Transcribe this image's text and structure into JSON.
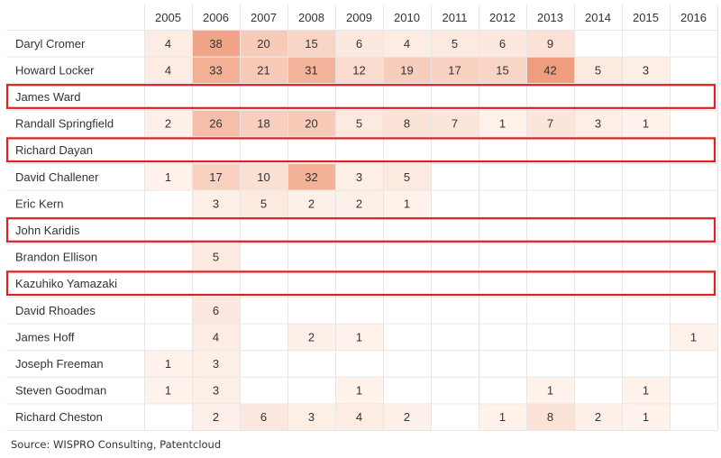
{
  "chart_data": {
    "type": "heatmap",
    "title": "",
    "years": [
      "2005",
      "2006",
      "2007",
      "2008",
      "2009",
      "2010",
      "2011",
      "2012",
      "2013",
      "2014",
      "2015",
      "2016"
    ],
    "rows": [
      {
        "name": "Daryl Cromer",
        "values": [
          4,
          38,
          20,
          15,
          6,
          4,
          5,
          6,
          9,
          null,
          null,
          null
        ],
        "highlighted": false
      },
      {
        "name": "Howard Locker",
        "values": [
          4,
          33,
          21,
          31,
          12,
          19,
          17,
          15,
          42,
          5,
          3,
          null
        ],
        "highlighted": false
      },
      {
        "name": "James Ward",
        "values": [
          null,
          null,
          null,
          null,
          null,
          null,
          null,
          null,
          null,
          null,
          null,
          null
        ],
        "highlighted": true
      },
      {
        "name": "Randall Springfield",
        "values": [
          2,
          26,
          18,
          20,
          5,
          8,
          7,
          1,
          7,
          3,
          1,
          null
        ],
        "highlighted": false
      },
      {
        "name": "Richard Dayan",
        "values": [
          null,
          null,
          null,
          null,
          null,
          null,
          null,
          null,
          null,
          null,
          null,
          null
        ],
        "highlighted": true
      },
      {
        "name": "David Challener",
        "values": [
          1,
          17,
          10,
          32,
          3,
          5,
          null,
          null,
          null,
          null,
          null,
          null
        ],
        "highlighted": false
      },
      {
        "name": "Eric Kern",
        "values": [
          null,
          3,
          5,
          2,
          2,
          1,
          null,
          null,
          null,
          null,
          null,
          null
        ],
        "highlighted": false
      },
      {
        "name": "John Karidis",
        "values": [
          null,
          null,
          null,
          null,
          null,
          null,
          null,
          null,
          null,
          null,
          null,
          null
        ],
        "highlighted": true
      },
      {
        "name": "Brandon Ellison",
        "values": [
          null,
          5,
          null,
          null,
          null,
          null,
          null,
          null,
          null,
          null,
          null,
          null
        ],
        "highlighted": false
      },
      {
        "name": "Kazuhiko Yamazaki",
        "values": [
          null,
          null,
          null,
          null,
          null,
          null,
          null,
          null,
          null,
          null,
          null,
          null
        ],
        "highlighted": true
      },
      {
        "name": "David Rhoades",
        "values": [
          null,
          6,
          null,
          null,
          null,
          null,
          null,
          null,
          null,
          null,
          null,
          null
        ],
        "highlighted": false
      },
      {
        "name": "James Hoff",
        "values": [
          null,
          4,
          null,
          2,
          1,
          null,
          null,
          null,
          null,
          null,
          null,
          1
        ],
        "highlighted": false
      },
      {
        "name": "Joseph Freeman",
        "values": [
          1,
          3,
          null,
          null,
          null,
          null,
          null,
          null,
          null,
          null,
          null,
          null
        ],
        "highlighted": false
      },
      {
        "name": "Steven Goodman",
        "values": [
          1,
          3,
          null,
          null,
          1,
          null,
          null,
          null,
          1,
          null,
          1,
          null
        ],
        "highlighted": false
      },
      {
        "name": "Richard Cheston",
        "values": [
          null,
          2,
          6,
          3,
          4,
          2,
          null,
          1,
          8,
          2,
          1,
          null
        ],
        "highlighted": false
      }
    ],
    "color_scale": {
      "low": "#fef4ee",
      "high": "#ef9d7d",
      "min": 0,
      "max": 42
    },
    "highlight_color": "#e02020",
    "grid": true
  },
  "caption": "Source: WISPRO Consulting, Patentcloud"
}
